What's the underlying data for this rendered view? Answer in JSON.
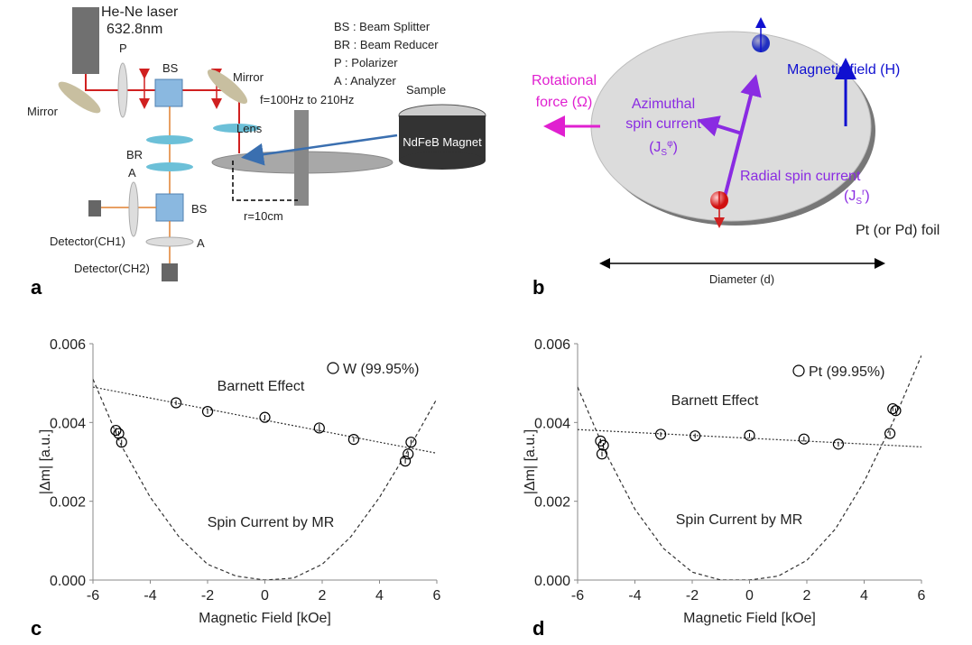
{
  "panel_a": {
    "label": "a",
    "laser": [
      "He-Ne laser",
      "632.8nm"
    ],
    "legend": [
      "BS : Beam  Splitter",
      "BR : Beam Reducer",
      "P : Polarizer",
      "A : Analyzer"
    ],
    "components": {
      "polarizer": "P",
      "beam_splitter_1": "BS",
      "mirror_left": "Mirror",
      "mirror_right": "Mirror",
      "frequency": "f=100Hz to 210Hz",
      "sample": "Sample",
      "lens": "Lens",
      "magnet": "NdFeB Magnet",
      "beam_reducer": "BR",
      "analyzer_1": "A",
      "beam_splitter_2": "BS",
      "detector_1": "Detector(CH1)",
      "analyzer_2": "A",
      "detector_2": "Detector(CH2)",
      "radius": "r=10cm"
    }
  },
  "panel_b": {
    "label": "b",
    "rotational": [
      "Rotational",
      "force (Ω)"
    ],
    "magnetic_field": "Magnetic field (H)",
    "azimuthal": [
      "Azimuthal",
      "spin current"
    ],
    "azimuthal_symbol": {
      "base": "(J",
      "sub": "S",
      "sup": "φ",
      "close": ")"
    },
    "radial": "Radial spin current",
    "radial_symbol": {
      "base": "(J",
      "sub": "S",
      "sup": "r",
      "close": ")"
    },
    "foil": "Pt (or Pd) foil",
    "diameter": "Diameter (d)"
  },
  "chart_data": [
    {
      "type": "scatter",
      "panel_label": "c",
      "xlabel": "Magnetic Field [kOe]",
      "ylabel": "|Δm| [a.u.]",
      "xlim": [
        -6,
        6
      ],
      "xticks": [
        -6,
        -4,
        -2,
        0,
        2,
        4,
        6
      ],
      "ylim": [
        0,
        0.006
      ],
      "yticks": [
        {
          "value": 0,
          "label": "0.000"
        },
        0.002,
        0.004,
        0.006
      ],
      "annotations": [
        "Barnett Effect",
        "Spin Current by MR"
      ],
      "series": [
        {
          "name": "W (99.95%)",
          "color": "#000000",
          "x": [
            -5.2,
            -5.1,
            -5.0,
            -3.1,
            -2.0,
            0,
            1.9,
            3.1,
            4.9,
            5.0,
            5.1
          ],
          "values": [
            0.0038,
            0.00372,
            0.0035,
            0.0045,
            0.00428,
            0.00413,
            0.00386,
            0.00357,
            0.00302,
            0.0032,
            0.0035
          ],
          "errors": [
            6e-05,
            6e-05,
            6e-05,
            6e-05,
            6e-05,
            6e-05,
            0.0001,
            6e-05,
            6e-05,
            6e-05,
            6e-05
          ]
        }
      ],
      "trend_lines": [
        {
          "style": "dotted",
          "x": [
            -6,
            6
          ],
          "values": [
            0.0049,
            0.00322
          ]
        },
        {
          "style": "dashed",
          "x": [
            -6,
            -5,
            -4,
            -3,
            -2,
            -1,
            0,
            1,
            2,
            3,
            4,
            5,
            6
          ],
          "values": [
            0.0051,
            0.0034,
            0.0021,
            0.0011,
            0.0004,
            0.0001,
            0,
            5e-05,
            0.0004,
            0.0011,
            0.0021,
            0.0033,
            0.0046
          ]
        }
      ]
    },
    {
      "type": "scatter",
      "panel_label": "d",
      "xlabel": "Magnetic Field [kOe]",
      "ylabel": "|Δm| [a.u.]",
      "xlim": [
        -6,
        6
      ],
      "xticks": [
        -6,
        -4,
        -2,
        0,
        2,
        4,
        6
      ],
      "ylim": [
        0,
        0.006
      ],
      "yticks": [
        {
          "value": 0,
          "label": "0.000"
        },
        0.002,
        0.004,
        0.006
      ],
      "annotations": [
        "Barnett Effect",
        "Spin Current by MR"
      ],
      "series": [
        {
          "name": "Pt (99.95%)",
          "color": "#000000",
          "x": [
            -5.2,
            -5.1,
            -5.15,
            -3.1,
            -1.9,
            0,
            1.9,
            3.1,
            4.9,
            5.0,
            5.1
          ],
          "values": [
            0.00353,
            0.00342,
            0.0032,
            0.0037,
            0.00366,
            0.00367,
            0.00358,
            0.00345,
            0.00372,
            0.00435,
            0.0043
          ],
          "errors": [
            6e-05,
            6e-05,
            6e-05,
            6e-05,
            6e-05,
            6e-05,
            6e-05,
            6e-05,
            6e-05,
            6e-05,
            6e-05
          ]
        }
      ],
      "trend_lines": [
        {
          "style": "dotted",
          "x": [
            -6,
            6
          ],
          "values": [
            0.00382,
            0.00338
          ]
        },
        {
          "style": "dashed",
          "x": [
            -6,
            -5,
            -4,
            -3,
            -2,
            -1,
            0,
            1,
            2,
            3,
            4,
            5,
            6
          ],
          "values": [
            0.0049,
            0.0032,
            0.0018,
            0.0008,
            0.0002,
            0,
            0,
            0.0001,
            0.0005,
            0.0013,
            0.0025,
            0.004,
            0.0057
          ]
        }
      ]
    }
  ]
}
